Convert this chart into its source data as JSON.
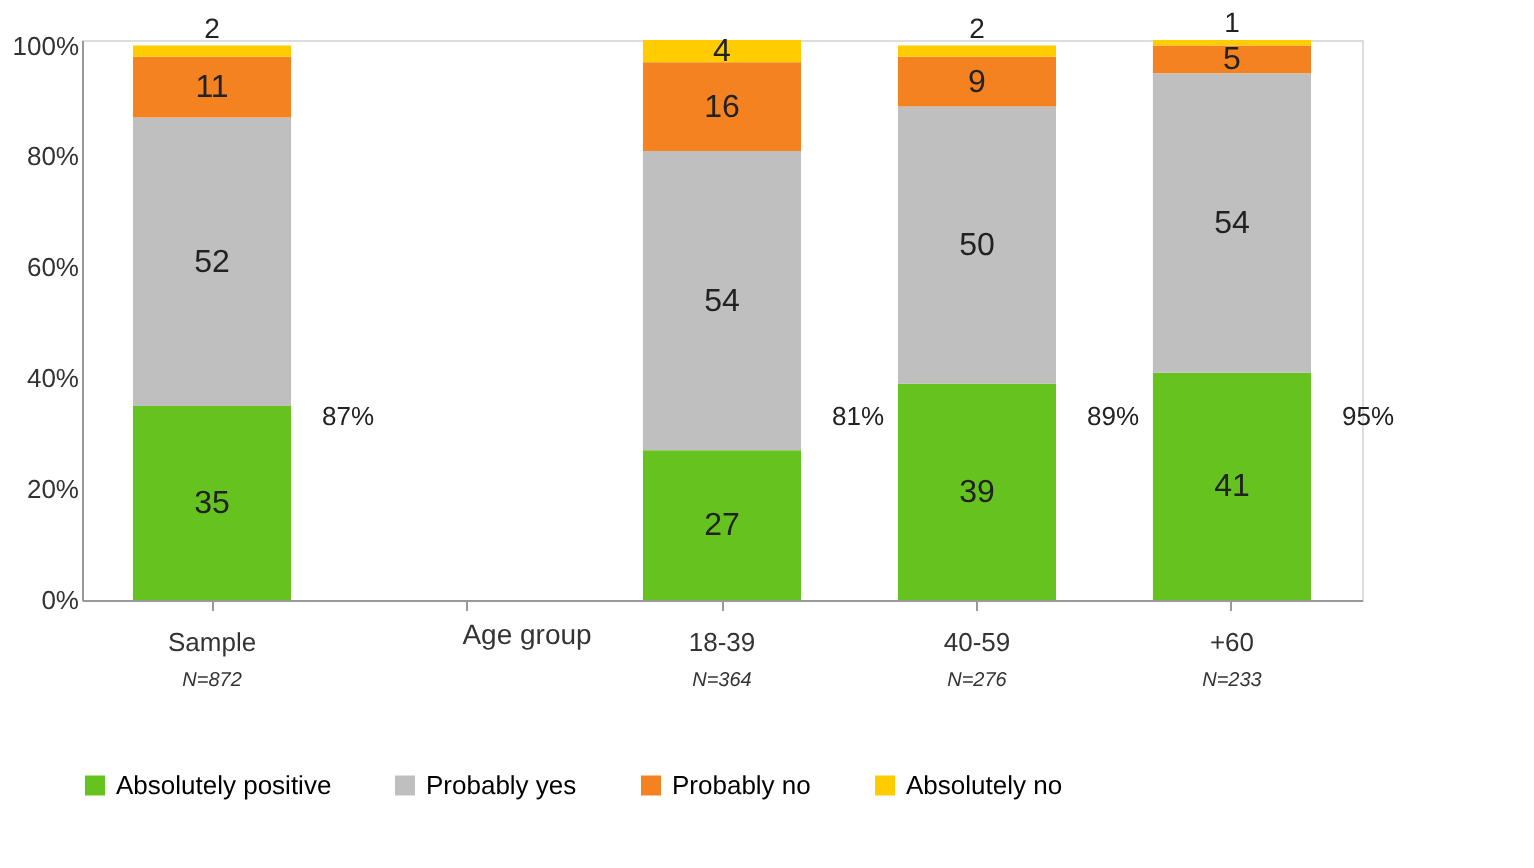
{
  "chart_data": {
    "type": "bar",
    "stacked": true,
    "categories": [
      "Sample",
      null,
      "18-39",
      "40-59",
      "+60"
    ],
    "series": [
      {
        "name": "Absolutely positive",
        "color": "#66c21e",
        "values": [
          35,
          null,
          27,
          39,
          41
        ]
      },
      {
        "name": "Probably yes",
        "color": "#bfbfbf",
        "values": [
          52,
          null,
          54,
          50,
          54
        ]
      },
      {
        "name": "Probably no",
        "color": "#f58220",
        "values": [
          11,
          null,
          16,
          9,
          5
        ]
      },
      {
        "name": "Absolutely no",
        "color": "#ffcc00",
        "values": [
          2,
          null,
          4,
          2,
          1
        ]
      }
    ],
    "ylim": [
      0,
      101
    ],
    "yticks": [
      {
        "value": 0,
        "label": "0%"
      },
      {
        "value": 20,
        "label": "20%"
      },
      {
        "value": 40,
        "label": "40%"
      },
      {
        "value": 60,
        "label": "60%"
      },
      {
        "value": 80,
        "label": "80%"
      },
      {
        "value": 100,
        "label": "100%"
      }
    ],
    "data_labels": true,
    "legend": "bottom",
    "annotations": [
      "87%",
      "81%",
      "89%",
      "95%",
      "Age group",
      "N=872",
      "N=364",
      "N=276",
      "N=233"
    ]
  }
}
